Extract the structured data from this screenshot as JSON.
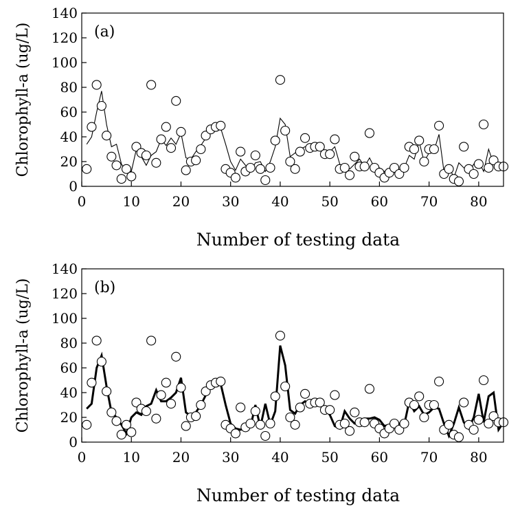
{
  "chart_data": [
    {
      "type": "scatter",
      "panel_label": "(a)",
      "xlabel": "Number of testing data",
      "ylabel": "Chlorophyll-a (ug/L)",
      "xlim": [
        0,
        85
      ],
      "ylim": [
        0,
        140
      ],
      "xticks": [
        0,
        10,
        20,
        30,
        40,
        50,
        60,
        70,
        80
      ],
      "yticks": [
        0,
        20,
        40,
        60,
        80,
        100,
        120,
        140
      ],
      "grid": false,
      "series": [
        {
          "kind": "scatter-open-circle",
          "x": [
            1,
            2,
            3,
            4,
            5,
            6,
            7,
            8,
            9,
            10,
            11,
            12,
            13,
            14,
            15,
            16,
            17,
            18,
            19,
            20,
            21,
            22,
            23,
            24,
            25,
            26,
            27,
            28,
            29,
            30,
            31,
            32,
            33,
            34,
            35,
            36,
            37,
            38,
            39,
            40,
            41,
            42,
            43,
            44,
            45,
            46,
            47,
            48,
            49,
            50,
            51,
            52,
            53,
            54,
            55,
            56,
            57,
            58,
            59,
            60,
            61,
            62,
            63,
            64,
            65,
            66,
            67,
            68,
            69,
            70,
            71,
            72,
            73,
            74,
            75,
            76,
            77,
            78,
            79,
            80,
            81,
            82,
            83,
            84,
            85
          ],
          "y": [
            14,
            48,
            82,
            65,
            41,
            24,
            17,
            6,
            14,
            8,
            32,
            27,
            25,
            82,
            19,
            38,
            48,
            31,
            69,
            44,
            13,
            20,
            21,
            30,
            41,
            46,
            48,
            49,
            14,
            11,
            7,
            28,
            12,
            15,
            25,
            14,
            5,
            15,
            37,
            86,
            45,
            20,
            14,
            28,
            39,
            31,
            32,
            32,
            26,
            26,
            38,
            14,
            15,
            9,
            24,
            16,
            16,
            43,
            15,
            11,
            7,
            11,
            15,
            10,
            15,
            32,
            30,
            37,
            20,
            30,
            30,
            49,
            10,
            14,
            6,
            4,
            32,
            14,
            10,
            18,
            50,
            15,
            21,
            16,
            16
          ]
        },
        {
          "kind": "line-thin",
          "x": [
            1,
            2,
            3,
            4,
            5,
            6,
            7,
            8,
            9,
            10,
            11,
            12,
            13,
            14,
            15,
            16,
            17,
            18,
            19,
            20,
            21,
            22,
            23,
            24,
            25,
            26,
            27,
            28,
            29,
            30,
            31,
            32,
            33,
            34,
            35,
            36,
            37,
            38,
            39,
            40,
            41,
            42,
            43,
            44,
            45,
            46,
            47,
            48,
            49,
            50,
            51,
            52,
            53,
            54,
            55,
            56,
            57,
            58,
            59,
            60,
            61,
            62,
            63,
            64,
            65,
            66,
            67,
            68,
            69,
            70,
            71,
            72,
            73,
            74,
            75,
            76,
            77,
            78,
            79,
            80,
            81,
            82,
            83,
            84,
            85
          ],
          "y": [
            34,
            40,
            60,
            77,
            50,
            32,
            34,
            18,
            12,
            12,
            30,
            24,
            17,
            25,
            28,
            38,
            33,
            39,
            34,
            43,
            23,
            22,
            28,
            33,
            39,
            44,
            45,
            47,
            34,
            20,
            13,
            22,
            17,
            12,
            19,
            20,
            12,
            20,
            32,
            55,
            50,
            24,
            27,
            30,
            32,
            32,
            30,
            31,
            29,
            28,
            32,
            18,
            14,
            14,
            18,
            22,
            16,
            23,
            15,
            15,
            12,
            13,
            14,
            13,
            15,
            25,
            22,
            36,
            20,
            27,
            29,
            42,
            12,
            16,
            7,
            19,
            15,
            11,
            18,
            20,
            12,
            30,
            18,
            15,
            17
          ]
        }
      ]
    },
    {
      "type": "scatter",
      "panel_label": "(b)",
      "xlabel": "Number of testing data",
      "ylabel": "Chlorophyll-a (ug/L)",
      "xlim": [
        0,
        85
      ],
      "ylim": [
        0,
        140
      ],
      "xticks": [
        0,
        10,
        20,
        30,
        40,
        50,
        60,
        70,
        80
      ],
      "yticks": [
        0,
        20,
        40,
        60,
        80,
        100,
        120,
        140
      ],
      "grid": false,
      "series": [
        {
          "kind": "scatter-open-circle",
          "x": [
            1,
            2,
            3,
            4,
            5,
            6,
            7,
            8,
            9,
            10,
            11,
            12,
            13,
            14,
            15,
            16,
            17,
            18,
            19,
            20,
            21,
            22,
            23,
            24,
            25,
            26,
            27,
            28,
            29,
            30,
            31,
            32,
            33,
            34,
            35,
            36,
            37,
            38,
            39,
            40,
            41,
            42,
            43,
            44,
            45,
            46,
            47,
            48,
            49,
            50,
            51,
            52,
            53,
            54,
            55,
            56,
            57,
            58,
            59,
            60,
            61,
            62,
            63,
            64,
            65,
            66,
            67,
            68,
            69,
            70,
            71,
            72,
            73,
            74,
            75,
            76,
            77,
            78,
            79,
            80,
            81,
            82,
            83,
            84,
            85
          ],
          "y": [
            14,
            48,
            82,
            65,
            41,
            24,
            17,
            6,
            14,
            8,
            32,
            27,
            25,
            82,
            19,
            38,
            48,
            31,
            69,
            44,
            13,
            20,
            21,
            30,
            41,
            46,
            48,
            49,
            14,
            11,
            7,
            28,
            12,
            15,
            25,
            14,
            5,
            15,
            37,
            86,
            45,
            20,
            14,
            28,
            39,
            31,
            32,
            32,
            26,
            26,
            38,
            14,
            15,
            9,
            24,
            16,
            16,
            43,
            15,
            11,
            7,
            11,
            15,
            10,
            15,
            32,
            30,
            37,
            20,
            30,
            30,
            49,
            10,
            14,
            6,
            4,
            32,
            14,
            10,
            18,
            50,
            15,
            21,
            16,
            16
          ]
        },
        {
          "kind": "line-thick",
          "x": [
            1,
            2,
            3,
            4,
            5,
            6,
            7,
            8,
            9,
            10,
            11,
            12,
            13,
            14,
            15,
            16,
            17,
            18,
            19,
            20,
            21,
            22,
            23,
            24,
            25,
            26,
            27,
            28,
            29,
            30,
            31,
            32,
            33,
            34,
            35,
            36,
            37,
            38,
            39,
            40,
            41,
            42,
            43,
            44,
            45,
            46,
            47,
            48,
            49,
            50,
            51,
            52,
            53,
            54,
            55,
            56,
            57,
            58,
            59,
            60,
            61,
            62,
            63,
            64,
            65,
            66,
            67,
            68,
            69,
            70,
            71,
            72,
            73,
            74,
            75,
            76,
            77,
            78,
            79,
            80,
            81,
            82,
            83,
            84,
            85
          ],
          "y": [
            27,
            31,
            60,
            70,
            45,
            24,
            20,
            14,
            7,
            20,
            24,
            22,
            29,
            31,
            42,
            33,
            33,
            36,
            40,
            52,
            24,
            21,
            24,
            30,
            38,
            45,
            47,
            47,
            30,
            15,
            11,
            10,
            12,
            12,
            30,
            12,
            31,
            14,
            25,
            78,
            62,
            26,
            23,
            30,
            33,
            30,
            30,
            30,
            27,
            22,
            13,
            11,
            25,
            19,
            15,
            16,
            19,
            19,
            20,
            18,
            13,
            14,
            15,
            15,
            14,
            33,
            25,
            29,
            22,
            24,
            28,
            27,
            15,
            5,
            15,
            28,
            16,
            11,
            20,
            39,
            16,
            37,
            40,
            10,
            16
          ]
        }
      ]
    }
  ]
}
